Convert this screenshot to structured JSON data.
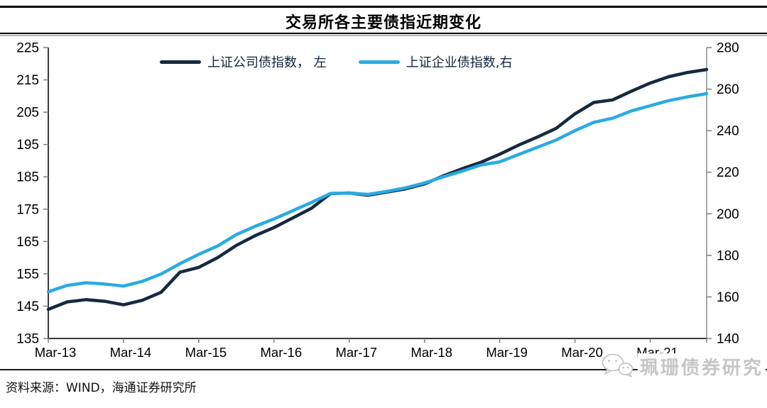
{
  "title": "交易所各主要债指近期变化",
  "source": "资料来源：WIND，海通证券研究所",
  "watermark": {
    "text": "珮珊债券研究",
    "icon": "wechat-icon"
  },
  "colors": {
    "company_line": "#17293f",
    "enterprise_line": "#29abe2",
    "axis_dark": "#3a3a3a",
    "axis_gray": "#a6a6a6",
    "tick": "#7f7f7f",
    "watermark_gray": "#c6c6c6"
  },
  "chart_data": {
    "type": "line",
    "title": "交易所各主要债指近期变化",
    "grid": false,
    "legend_position": "top",
    "x": [
      "Mar-13",
      "Jun-13",
      "Sep-13",
      "Dec-13",
      "Mar-14",
      "Jun-14",
      "Sep-14",
      "Dec-14",
      "Mar-15",
      "Jun-15",
      "Sep-15",
      "Dec-15",
      "Mar-16",
      "Jun-16",
      "Sep-16",
      "Dec-16",
      "Mar-17",
      "Jun-17",
      "Sep-17",
      "Dec-17",
      "Mar-18",
      "Jun-18",
      "Sep-18",
      "Dec-18",
      "Mar-19",
      "Jun-19",
      "Sep-19",
      "Dec-19",
      "Mar-20",
      "Jun-20",
      "Sep-20",
      "Dec-20",
      "Mar-21",
      "Jun-21",
      "Sep-21",
      "Dec-21"
    ],
    "x_tick_labels": [
      "Mar-13",
      "Mar-14",
      "Mar-15",
      "Mar-16",
      "Mar-17",
      "Mar-18",
      "Mar-19",
      "Mar-20",
      "Mar-21"
    ],
    "left_axis": {
      "min": 135,
      "max": 225,
      "ticks": [
        225,
        215,
        205,
        195,
        185,
        175,
        165,
        155,
        145,
        135
      ]
    },
    "right_axis": {
      "min": 140,
      "max": 280,
      "ticks": [
        280,
        260,
        240,
        220,
        200,
        180,
        160,
        140
      ]
    },
    "series": [
      {
        "name": "上证公司债指数， 左",
        "axis": "left",
        "color": "#17293f",
        "values": [
          144.0,
          146.3,
          147.0,
          146.5,
          145.4,
          146.8,
          149.3,
          155.5,
          157.0,
          160.0,
          163.8,
          166.8,
          169.3,
          172.3,
          175.3,
          179.8,
          180.0,
          179.3,
          180.3,
          181.3,
          182.8,
          185.3,
          187.5,
          189.5,
          192.0,
          194.8,
          197.3,
          200.0,
          204.5,
          208.0,
          208.8,
          211.5,
          214.0,
          216.0,
          217.3,
          218.2
        ]
      },
      {
        "name": "上证企业债指数,右",
        "axis": "right",
        "color": "#29abe2",
        "values": [
          162.5,
          165.5,
          166.8,
          166.2,
          165.2,
          167.5,
          171.0,
          176.0,
          180.5,
          184.5,
          190.0,
          194.0,
          197.5,
          201.5,
          205.5,
          209.8,
          210.0,
          209.3,
          210.8,
          212.5,
          214.8,
          217.8,
          220.5,
          223.5,
          225.0,
          228.5,
          232.0,
          235.5,
          240.0,
          244.0,
          246.0,
          249.5,
          252.0,
          254.5,
          256.3,
          257.8
        ]
      }
    ]
  }
}
